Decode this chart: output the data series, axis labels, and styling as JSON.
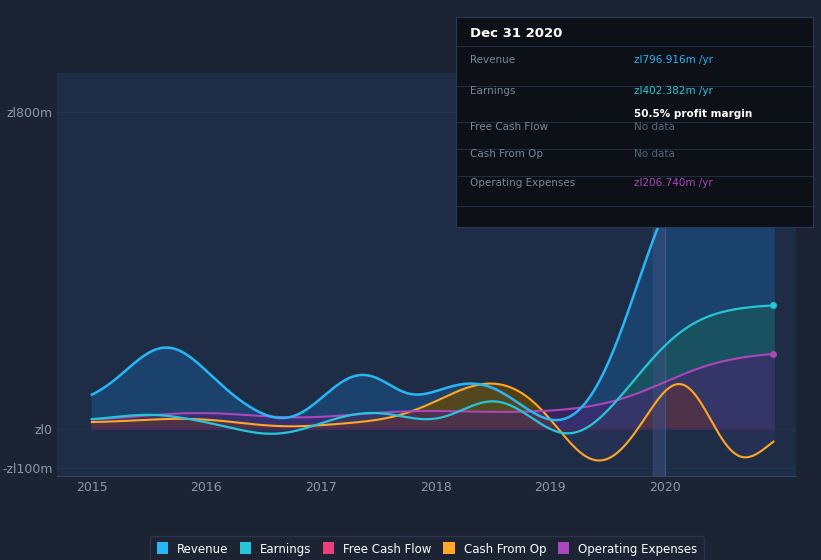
{
  "bg_color": "#1c2333",
  "plot_bg_color": "#1e2d45",
  "dark_bg": "#111827",
  "ylabel_800": "zl800m",
  "ylabel_0": "zl0",
  "ylabel_neg100": "-zl100m",
  "xlim": [
    2014.7,
    2021.15
  ],
  "ylim": [
    -120,
    900
  ],
  "grid_color": "#2a3a55",
  "revenue_color": "#29b6f6",
  "earnings_color": "#26c6da",
  "cashflow_color": "#ec407a",
  "cashop_color": "#ffa726",
  "opex_color": "#ab47bc",
  "revenue_fill": "#1a4a7a",
  "earnings_fill": "#1a5a5a",
  "cashop_fill": "#6b4a00",
  "opex_fill": "#4a2070",
  "neg_fill": "#2a3560",
  "cursor_color": "#3a4a70",
  "tooltip_bg": "#0d1117",
  "tooltip_border": "#2a3a55",
  "legend_items": [
    {
      "label": "Revenue",
      "color": "#29b6f6"
    },
    {
      "label": "Earnings",
      "color": "#26c6da"
    },
    {
      "label": "Free Cash Flow",
      "color": "#ec407a"
    },
    {
      "label": "Cash From Op",
      "color": "#ffa726"
    },
    {
      "label": "Operating Expenses",
      "color": "#ab47bc"
    }
  ],
  "tooltip": {
    "date": "Dec 31 2020",
    "revenue_label": "Revenue",
    "revenue_val": "zl796.916m /yr",
    "revenue_color": "#29b6f6",
    "earnings_label": "Earnings",
    "earnings_val": "zl402.382m /yr",
    "earnings_color": "#26c6da",
    "margin_val": "50.5% profit margin",
    "fcf_label": "Free Cash Flow",
    "fcf_val": "No data",
    "fcf_color": "#556677",
    "cfo_label": "Cash From Op",
    "cfo_val": "No data",
    "cfo_color": "#556677",
    "opex_label": "Operating Expenses",
    "opex_val": "zl206.740m /yr",
    "opex_color": "#ab47bc"
  }
}
